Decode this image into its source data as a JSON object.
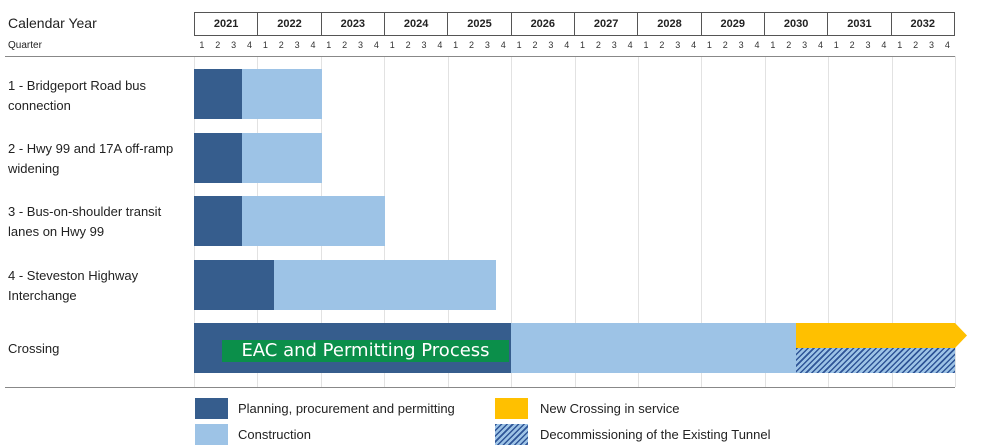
{
  "header": {
    "calendar_label": "Calendar Year",
    "quarter_label": "Quarter",
    "years": [
      "2021",
      "2022",
      "2023",
      "2024",
      "2025",
      "2026",
      "2027",
      "2028",
      "2029",
      "2030",
      "2031",
      "2032"
    ],
    "quarters": [
      "1",
      "2",
      "3",
      "4"
    ]
  },
  "rows": [
    {
      "label_lines": [
        "1 - Bridgeport Road bus",
        "connection"
      ]
    },
    {
      "label_lines": [
        "2 - Hwy 99 and 17A off-ramp",
        "widening"
      ]
    },
    {
      "label_lines": [
        "3 - Bus-on-shoulder transit",
        "lanes on Hwy 99"
      ]
    },
    {
      "label_lines": [
        "4 - Steveston Highway",
        "Interchange"
      ]
    },
    {
      "label_lines": [
        "Crossing"
      ]
    }
  ],
  "crossing_annotation": "EAC and Permitting Process",
  "legend": {
    "planning": "Planning, procurement and permitting",
    "construction": "Construction",
    "service": "New Crossing in service",
    "decommission": "Decommissioning of the Existing Tunnel"
  },
  "colors": {
    "planning": "#365d8d",
    "construction": "#9dc3e6",
    "service": "#ffc000",
    "annotation": "#0b8f4a"
  }
}
